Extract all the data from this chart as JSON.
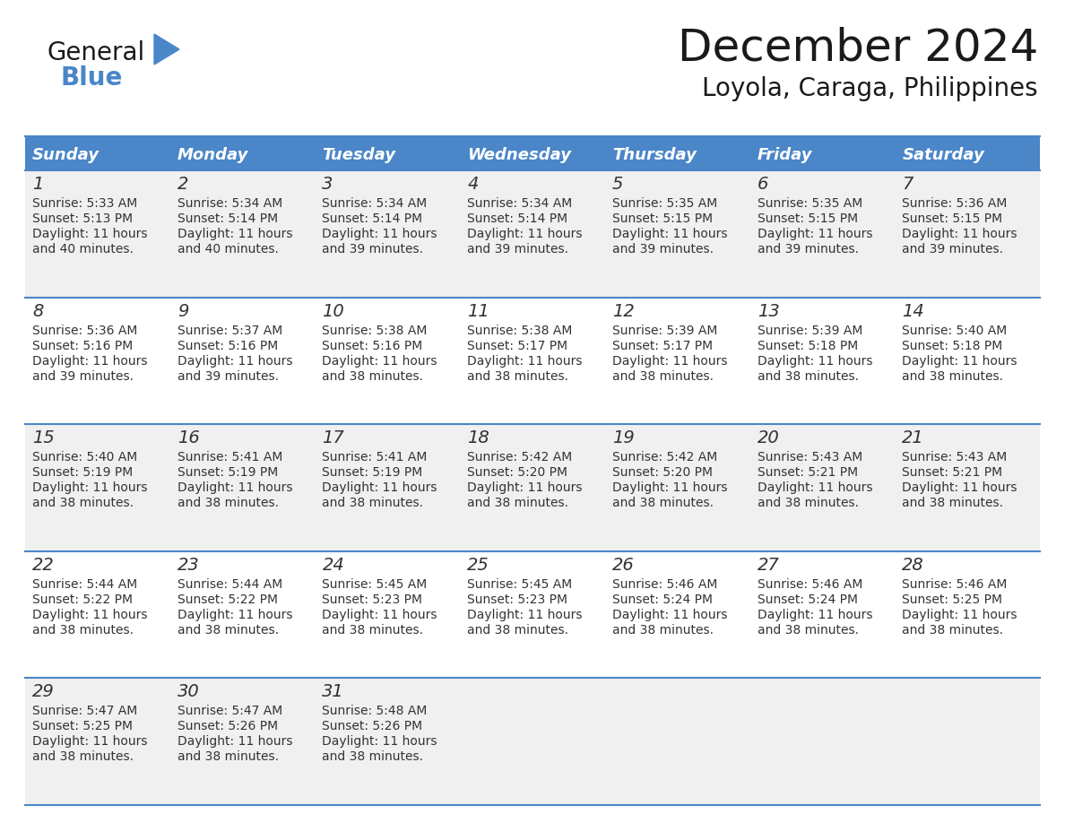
{
  "title": "December 2024",
  "subtitle": "Loyola, Caraga, Philippines",
  "header_color": "#4a86c8",
  "header_text_color": "#ffffff",
  "cell_bg_color": "#f0f0f0",
  "alt_cell_bg_color": "#ffffff",
  "border_color": "#4a86c8",
  "text_color": "#333333",
  "days_of_week": [
    "Sunday",
    "Monday",
    "Tuesday",
    "Wednesday",
    "Thursday",
    "Friday",
    "Saturday"
  ],
  "weeks": [
    [
      {
        "day": 1,
        "sunrise": "5:33 AM",
        "sunset": "5:13 PM",
        "daylight_line1": "Daylight: 11 hours",
        "daylight_line2": "and 40 minutes."
      },
      {
        "day": 2,
        "sunrise": "5:34 AM",
        "sunset": "5:14 PM",
        "daylight_line1": "Daylight: 11 hours",
        "daylight_line2": "and 40 minutes."
      },
      {
        "day": 3,
        "sunrise": "5:34 AM",
        "sunset": "5:14 PM",
        "daylight_line1": "Daylight: 11 hours",
        "daylight_line2": "and 39 minutes."
      },
      {
        "day": 4,
        "sunrise": "5:34 AM",
        "sunset": "5:14 PM",
        "daylight_line1": "Daylight: 11 hours",
        "daylight_line2": "and 39 minutes."
      },
      {
        "day": 5,
        "sunrise": "5:35 AM",
        "sunset": "5:15 PM",
        "daylight_line1": "Daylight: 11 hours",
        "daylight_line2": "and 39 minutes."
      },
      {
        "day": 6,
        "sunrise": "5:35 AM",
        "sunset": "5:15 PM",
        "daylight_line1": "Daylight: 11 hours",
        "daylight_line2": "and 39 minutes."
      },
      {
        "day": 7,
        "sunrise": "5:36 AM",
        "sunset": "5:15 PM",
        "daylight_line1": "Daylight: 11 hours",
        "daylight_line2": "and 39 minutes."
      }
    ],
    [
      {
        "day": 8,
        "sunrise": "5:36 AM",
        "sunset": "5:16 PM",
        "daylight_line1": "Daylight: 11 hours",
        "daylight_line2": "and 39 minutes."
      },
      {
        "day": 9,
        "sunrise": "5:37 AM",
        "sunset": "5:16 PM",
        "daylight_line1": "Daylight: 11 hours",
        "daylight_line2": "and 39 minutes."
      },
      {
        "day": 10,
        "sunrise": "5:38 AM",
        "sunset": "5:16 PM",
        "daylight_line1": "Daylight: 11 hours",
        "daylight_line2": "and 38 minutes."
      },
      {
        "day": 11,
        "sunrise": "5:38 AM",
        "sunset": "5:17 PM",
        "daylight_line1": "Daylight: 11 hours",
        "daylight_line2": "and 38 minutes."
      },
      {
        "day": 12,
        "sunrise": "5:39 AM",
        "sunset": "5:17 PM",
        "daylight_line1": "Daylight: 11 hours",
        "daylight_line2": "and 38 minutes."
      },
      {
        "day": 13,
        "sunrise": "5:39 AM",
        "sunset": "5:18 PM",
        "daylight_line1": "Daylight: 11 hours",
        "daylight_line2": "and 38 minutes."
      },
      {
        "day": 14,
        "sunrise": "5:40 AM",
        "sunset": "5:18 PM",
        "daylight_line1": "Daylight: 11 hours",
        "daylight_line2": "and 38 minutes."
      }
    ],
    [
      {
        "day": 15,
        "sunrise": "5:40 AM",
        "sunset": "5:19 PM",
        "daylight_line1": "Daylight: 11 hours",
        "daylight_line2": "and 38 minutes."
      },
      {
        "day": 16,
        "sunrise": "5:41 AM",
        "sunset": "5:19 PM",
        "daylight_line1": "Daylight: 11 hours",
        "daylight_line2": "and 38 minutes."
      },
      {
        "day": 17,
        "sunrise": "5:41 AM",
        "sunset": "5:19 PM",
        "daylight_line1": "Daylight: 11 hours",
        "daylight_line2": "and 38 minutes."
      },
      {
        "day": 18,
        "sunrise": "5:42 AM",
        "sunset": "5:20 PM",
        "daylight_line1": "Daylight: 11 hours",
        "daylight_line2": "and 38 minutes."
      },
      {
        "day": 19,
        "sunrise": "5:42 AM",
        "sunset": "5:20 PM",
        "daylight_line1": "Daylight: 11 hours",
        "daylight_line2": "and 38 minutes."
      },
      {
        "day": 20,
        "sunrise": "5:43 AM",
        "sunset": "5:21 PM",
        "daylight_line1": "Daylight: 11 hours",
        "daylight_line2": "and 38 minutes."
      },
      {
        "day": 21,
        "sunrise": "5:43 AM",
        "sunset": "5:21 PM",
        "daylight_line1": "Daylight: 11 hours",
        "daylight_line2": "and 38 minutes."
      }
    ],
    [
      {
        "day": 22,
        "sunrise": "5:44 AM",
        "sunset": "5:22 PM",
        "daylight_line1": "Daylight: 11 hours",
        "daylight_line2": "and 38 minutes."
      },
      {
        "day": 23,
        "sunrise": "5:44 AM",
        "sunset": "5:22 PM",
        "daylight_line1": "Daylight: 11 hours",
        "daylight_line2": "and 38 minutes."
      },
      {
        "day": 24,
        "sunrise": "5:45 AM",
        "sunset": "5:23 PM",
        "daylight_line1": "Daylight: 11 hours",
        "daylight_line2": "and 38 minutes."
      },
      {
        "day": 25,
        "sunrise": "5:45 AM",
        "sunset": "5:23 PM",
        "daylight_line1": "Daylight: 11 hours",
        "daylight_line2": "and 38 minutes."
      },
      {
        "day": 26,
        "sunrise": "5:46 AM",
        "sunset": "5:24 PM",
        "daylight_line1": "Daylight: 11 hours",
        "daylight_line2": "and 38 minutes."
      },
      {
        "day": 27,
        "sunrise": "5:46 AM",
        "sunset": "5:24 PM",
        "daylight_line1": "Daylight: 11 hours",
        "daylight_line2": "and 38 minutes."
      },
      {
        "day": 28,
        "sunrise": "5:46 AM",
        "sunset": "5:25 PM",
        "daylight_line1": "Daylight: 11 hours",
        "daylight_line2": "and 38 minutes."
      }
    ],
    [
      {
        "day": 29,
        "sunrise": "5:47 AM",
        "sunset": "5:25 PM",
        "daylight_line1": "Daylight: 11 hours",
        "daylight_line2": "and 38 minutes."
      },
      {
        "day": 30,
        "sunrise": "5:47 AM",
        "sunset": "5:26 PM",
        "daylight_line1": "Daylight: 11 hours",
        "daylight_line2": "and 38 minutes."
      },
      {
        "day": 31,
        "sunrise": "5:48 AM",
        "sunset": "5:26 PM",
        "daylight_line1": "Daylight: 11 hours",
        "daylight_line2": "and 38 minutes."
      },
      null,
      null,
      null,
      null
    ]
  ],
  "logo_text_general": "General",
  "logo_text_blue": "Blue",
  "logo_triangle_color": "#4a86c8",
  "title_fontsize": 36,
  "subtitle_fontsize": 20,
  "header_fontsize": 13,
  "day_num_fontsize": 14,
  "cell_text_fontsize": 10
}
